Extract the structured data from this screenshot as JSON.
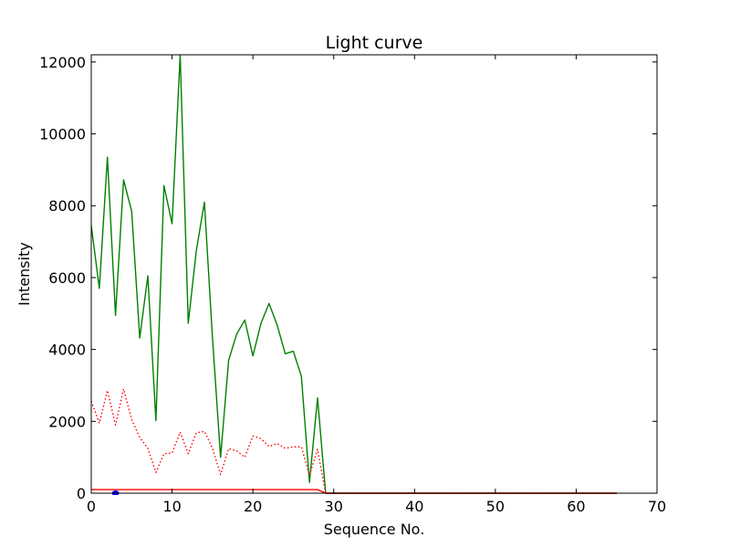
{
  "chart_data": {
    "type": "line",
    "title": "Light curve",
    "xlabel": "Sequence No.",
    "ylabel": "Intensity",
    "xlim": [
      0,
      70
    ],
    "ylim": [
      0,
      12200
    ],
    "xticks": [
      0,
      10,
      20,
      30,
      40,
      50,
      60,
      70
    ],
    "yticks": [
      0,
      2000,
      4000,
      6000,
      8000,
      10000,
      12000
    ],
    "grid": false,
    "legend": "none",
    "series": [
      {
        "color": "#008000",
        "style": "solid",
        "x": [
          0,
          1,
          2,
          3,
          4,
          5,
          6,
          7,
          8,
          9,
          10,
          11,
          12,
          13,
          14,
          15,
          16,
          17,
          18,
          19,
          20,
          21,
          22,
          23,
          24,
          25,
          26,
          27,
          28,
          29,
          30,
          31,
          32,
          33,
          34,
          35,
          36,
          37,
          38,
          39,
          40,
          41,
          42,
          43,
          44,
          45,
          46,
          47,
          48,
          49,
          50,
          51,
          52,
          53,
          54,
          55,
          56,
          57,
          58,
          59,
          60,
          61,
          62,
          63,
          64,
          65
        ],
        "y": [
          7450,
          5700,
          9350,
          4950,
          8720,
          7850,
          4320,
          6050,
          2020,
          8560,
          7500,
          12200,
          4730,
          6750,
          8100,
          4320,
          1000,
          3700,
          4430,
          4820,
          3820,
          4730,
          5280,
          4680,
          3880,
          3950,
          3250,
          300,
          2650,
          0,
          0,
          0,
          0,
          0,
          0,
          0,
          0,
          0,
          0,
          0,
          0,
          0,
          0,
          0,
          0,
          0,
          0,
          0,
          0,
          0,
          0,
          0,
          0,
          0,
          0,
          0,
          0,
          0,
          0,
          0,
          0,
          0,
          0,
          0,
          0,
          0
        ]
      },
      {
        "color": "#ff0000",
        "style": "dotted",
        "x": [
          0,
          1,
          2,
          3,
          4,
          5,
          6,
          7,
          8,
          9,
          10,
          11,
          12,
          13,
          14,
          15,
          16,
          17,
          18,
          19,
          20,
          21,
          22,
          23,
          24,
          25,
          26,
          27,
          28,
          29,
          30,
          31,
          32,
          33,
          34,
          35,
          36,
          37,
          38,
          39,
          40,
          41,
          42,
          43,
          44,
          45,
          46,
          47,
          48,
          49,
          50,
          51,
          52,
          53,
          54,
          55,
          56,
          57,
          58,
          59,
          60,
          61,
          62,
          63,
          64,
          65
        ],
        "y": [
          2560,
          1950,
          2860,
          1900,
          2900,
          2050,
          1550,
          1250,
          580,
          1100,
          1120,
          1700,
          1100,
          1680,
          1720,
          1250,
          520,
          1240,
          1180,
          1000,
          1590,
          1520,
          1300,
          1380,
          1250,
          1290,
          1290,
          500,
          1220,
          0,
          0,
          0,
          0,
          0,
          0,
          0,
          0,
          0,
          0,
          0,
          0,
          0,
          0,
          0,
          0,
          0,
          0,
          0,
          0,
          0,
          0,
          0,
          0,
          0,
          0,
          0,
          0,
          0,
          0,
          0,
          0,
          0,
          0,
          0,
          0,
          0
        ]
      },
      {
        "color": "#ff0000",
        "style": "solid",
        "x": [
          0,
          28,
          29,
          65
        ],
        "y": [
          100,
          100,
          0,
          0
        ]
      },
      {
        "color": "#0000ff",
        "style": "marker",
        "x": [
          3
        ],
        "y": [
          0
        ]
      }
    ]
  }
}
